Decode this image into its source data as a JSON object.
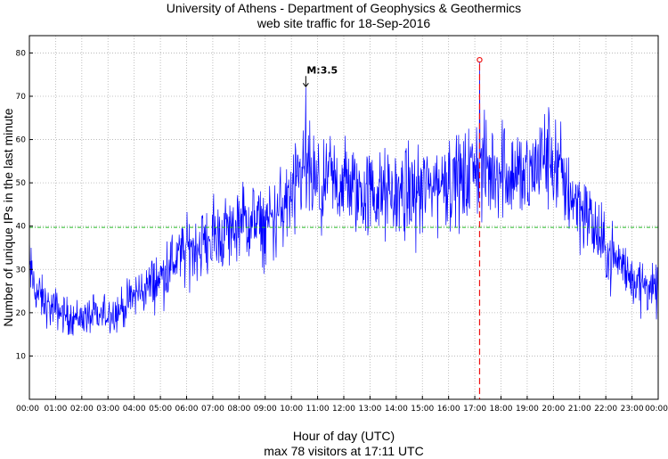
{
  "chart_data": {
    "type": "line",
    "title": "University of Athens - Department of Geophysics & Geothermics",
    "subtitle": "web site traffic for 18-Sep-2016",
    "xlabel": "Hour of day (UTC)",
    "footnote": "max 78 visitors at 17:11 UTC",
    "ylabel": "Number of unique IPs in the last minute",
    "xlim": [
      0,
      24
    ],
    "ylim": [
      0,
      84
    ],
    "grid": true,
    "x_tick_labels": [
      "00:00",
      "01:00",
      "02:00",
      "03:00",
      "04:00",
      "05:00",
      "06:00",
      "07:00",
      "08:00",
      "09:00",
      "10:00",
      "11:00",
      "12:00",
      "13:00",
      "14:00",
      "15:00",
      "16:00",
      "17:00",
      "18:00",
      "19:00",
      "20:00",
      "21:00",
      "22:00",
      "23:00",
      "00:00"
    ],
    "y_ticks": [
      10,
      20,
      30,
      40,
      50,
      60,
      70,
      80
    ],
    "reference_line": {
      "y": 39.7,
      "color": "#22bb22",
      "style": "dash-dot"
    },
    "max_marker": {
      "x": 17.183,
      "y": 78,
      "color": "#ee1111"
    },
    "annotation": {
      "label": "M:3.5",
      "x": 10.55,
      "y": 72
    },
    "series_color": "#0000ff",
    "series": [
      {
        "x": [
          0,
          0.25,
          0.5,
          0.75,
          1,
          1.25,
          1.5,
          1.75,
          2,
          2.25,
          2.5,
          2.75,
          3,
          3.25,
          3.5,
          3.75,
          4,
          4.25,
          4.5,
          4.75,
          5,
          5.25,
          5.5,
          5.75,
          6,
          6.25,
          6.5,
          6.75,
          7,
          7.25,
          7.5,
          7.75,
          8,
          8.25,
          8.5,
          8.75,
          9,
          9.25,
          9.5,
          9.75,
          10,
          10.25,
          10.5,
          10.75,
          11,
          11.25,
          11.5,
          11.75,
          12,
          12.25,
          12.5,
          12.75,
          13,
          13.25,
          13.5,
          13.75,
          14,
          14.25,
          14.5,
          14.75,
          15,
          15.25,
          15.5,
          15.75,
          16,
          16.25,
          16.5,
          16.75,
          17,
          17.25,
          17.5,
          17.75,
          18,
          18.25,
          18.5,
          18.75,
          19,
          19.25,
          19.5,
          19.75,
          20,
          20.25,
          20.5,
          20.75,
          21,
          21.25,
          21.5,
          21.75,
          22,
          22.25,
          22.5,
          22.75,
          23,
          23.25,
          23.5,
          23.75,
          24
        ],
        "values": [
          30,
          25,
          23,
          21,
          21,
          20,
          19,
          19,
          19,
          19,
          19,
          19,
          20,
          20,
          21,
          22,
          24,
          25,
          26,
          27,
          28,
          30,
          32,
          33,
          34,
          35,
          36,
          36,
          37,
          38,
          39,
          39,
          40,
          41,
          41,
          40,
          40,
          41,
          43,
          45,
          46,
          49,
          53,
          51,
          48,
          47,
          50,
          50,
          50,
          49,
          48,
          47,
          48,
          47,
          47,
          47,
          47,
          48,
          47,
          48,
          48,
          49,
          50,
          50,
          51,
          51,
          50,
          51,
          55,
          53,
          52,
          53,
          54,
          53,
          52,
          52,
          51,
          53,
          55,
          56,
          55,
          52,
          49,
          47,
          45,
          43,
          40,
          37,
          34,
          33,
          32,
          30,
          28,
          27,
          27,
          25,
          24
        ]
      }
    ]
  }
}
